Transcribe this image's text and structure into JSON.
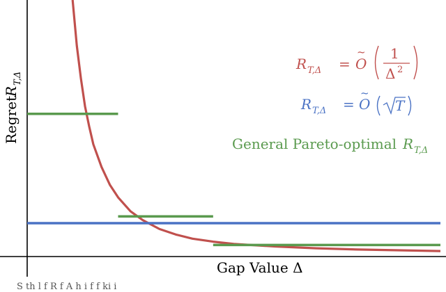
{
  "chart_data": {
    "type": "line",
    "xlabel": "Gap Value Δ",
    "ylabel": "Regret R_{T,Δ}",
    "grid": false,
    "xlim": [
      0,
      1
    ],
    "ylim": [
      0,
      1
    ],
    "series": [
      {
        "name": "R_{T,Δ} = Õ(1/Δ²)",
        "kind": "curve",
        "color": "#c0504d",
        "x": [
          0.11,
          0.12,
          0.13,
          0.14,
          0.15,
          0.16,
          0.18,
          0.2,
          0.22,
          0.25,
          0.28,
          0.32,
          0.36,
          0.4,
          0.45,
          0.5,
          0.6,
          0.7,
          0.8,
          0.9,
          1.0
        ],
        "y": [
          1.0,
          0.82,
          0.69,
          0.58,
          0.5,
          0.43,
          0.34,
          0.27,
          0.22,
          0.165,
          0.13,
          0.095,
          0.073,
          0.057,
          0.045,
          0.036,
          0.026,
          0.019,
          0.014,
          0.011,
          0.008
        ]
      },
      {
        "name": "R_{T,Δ} = Õ(√T)",
        "kind": "hline",
        "color": "#4a72c4",
        "y": 0.118
      },
      {
        "name": "General Pareto-optimal R_{T,Δ}",
        "kind": "steps",
        "color": "#5a9a4e",
        "segments": [
          {
            "x0": 0.0,
            "x1": 0.22,
            "y": 0.55
          },
          {
            "x0": 0.22,
            "x1": 0.45,
            "y": 0.145
          },
          {
            "x0": 0.45,
            "x1": 1.0,
            "y": 0.032
          }
        ]
      }
    ],
    "legend": {
      "placement": "right",
      "entries": [
        {
          "text": "R_{T,Δ} = Õ(1/Δ²)",
          "color": "#c0504d"
        },
        {
          "text": "R_{T,Δ} = Õ(√T)",
          "color": "#4a72c4"
        },
        {
          "text": "General Pareto-optimal R_{T,Δ}",
          "color": "#5a9a4e"
        }
      ]
    }
  },
  "labels": {
    "xlabel": "Gap Value Δ",
    "ylabel_text": "Regret",
    "legend_prefix_R": "R",
    "legend_sub": "T,Δ",
    "legend_eq": "=",
    "legend_O": "O",
    "legend_tilde": "~",
    "legend_num": "1",
    "legend_den": "Δ",
    "legend_den_exp": "2",
    "legend_sqrt_arg": "T",
    "legend_general": "General Pareto-optimal",
    "caption_fragment": "S    th    l   f R   f   A   h                              i            f        f  ki  i"
  }
}
